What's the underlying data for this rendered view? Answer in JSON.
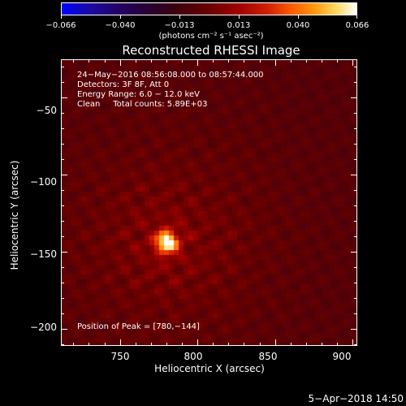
{
  "colorbar": {
    "ticks": [
      "−0.066",
      "−0.040",
      "−0.013",
      "0.013",
      "0.040",
      "0.066"
    ],
    "units": "(photons cm⁻² s⁻¹ asec⁻²)"
  },
  "title": "Reconstructed RHESSI Image",
  "info": {
    "line1": "24−May−2016 08:56:08.000 to 08:57:44.000",
    "line2": "Detectors: 3F 8F, Att 0",
    "line3": "Energy Range: 6.0 − 12.0 keV",
    "line4": "Clean     Total counts: 5.89E+03",
    "peak": "Position of Peak = [780,−144]"
  },
  "axes": {
    "ylabel": "Heliocentric Y (arcsec)",
    "xlabel": "Heliocentric X (arcsec)",
    "yticks": [
      "−50",
      "−100",
      "−150",
      "−200"
    ],
    "xticks": [
      "750",
      "800",
      "850",
      "900"
    ]
  },
  "map": {
    "x_range": [
      712,
      903
    ],
    "y_range": [
      -211,
      -25
    ],
    "peak_x": 780,
    "peak_y": -144
  },
  "timestamp": "5−Apr−2018 14:50"
}
